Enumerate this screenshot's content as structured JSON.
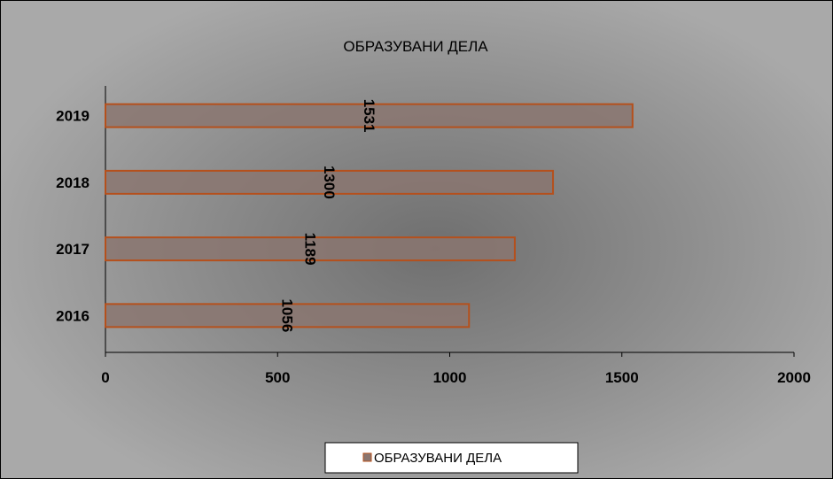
{
  "chart_data": {
    "type": "bar",
    "orientation": "horizontal",
    "title": "ОБРАЗУВАНИ ДЕЛА",
    "categories": [
      "2016",
      "2017",
      "2018",
      "2019"
    ],
    "series": [
      {
        "name": "ОБРАЗУВАНИ ДЕЛА",
        "values": [
          1056,
          1189,
          1300,
          1531
        ]
      }
    ],
    "xlim": [
      0,
      2000
    ],
    "xticks": [
      0,
      500,
      1000,
      1500,
      2000
    ],
    "grid": false,
    "legend_position": "bottom",
    "colors": {
      "bar_fill": "#8a7670",
      "bar_stroke": "#b5501c",
      "legend_marker": "#8a7670"
    }
  }
}
